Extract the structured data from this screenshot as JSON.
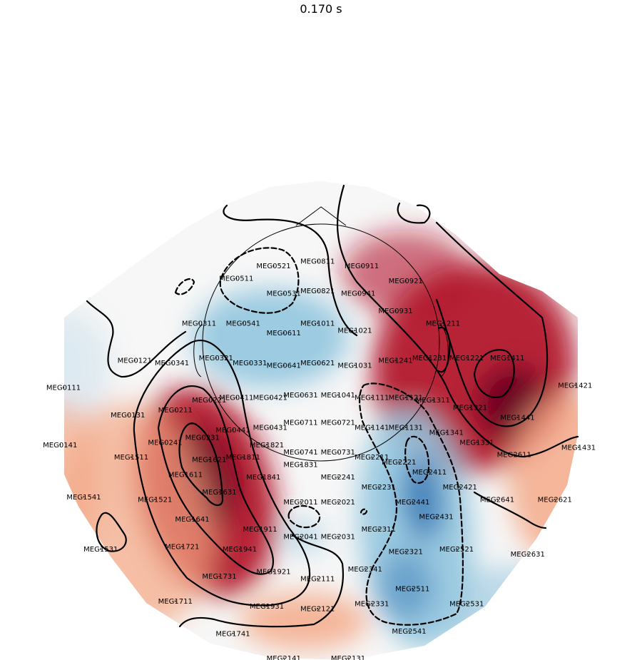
{
  "chart_data": {
    "type": "heatmap",
    "title": "0.170 s",
    "colormap": {
      "name": "RdBu_r",
      "negative_strong": "#2166ac",
      "negative": "#92c5de",
      "neutral": "#f7f7f7",
      "positive": "#f4a582",
      "positive_strong": "#b2182b",
      "positive_max": "#67001f"
    },
    "value_range": [
      -1,
      1
    ],
    "sensors": [
      {
        "name": "MEG0111",
        "x": -0.76,
        "y": 0.12
      },
      {
        "name": "MEG0121",
        "x": -0.55,
        "y": 0.23
      },
      {
        "name": "MEG0131",
        "x": -0.57,
        "y": 0.01
      },
      {
        "name": "MEG0141",
        "x": -0.77,
        "y": -0.11
      },
      {
        "name": "MEG0211",
        "x": -0.43,
        "y": 0.03
      },
      {
        "name": "MEG0221",
        "x": -0.33,
        "y": 0.07
      },
      {
        "name": "MEG0231",
        "x": -0.35,
        "y": -0.08
      },
      {
        "name": "MEG0241",
        "x": -0.46,
        "y": -0.1
      },
      {
        "name": "MEG0311",
        "x": -0.36,
        "y": 0.38
      },
      {
        "name": "MEG0321",
        "x": -0.31,
        "y": 0.24
      },
      {
        "name": "MEG0331",
        "x": -0.21,
        "y": 0.22
      },
      {
        "name": "MEG0341",
        "x": -0.44,
        "y": 0.22
      },
      {
        "name": "MEG0411",
        "x": -0.25,
        "y": 0.08
      },
      {
        "name": "MEG0421",
        "x": -0.15,
        "y": 0.08
      },
      {
        "name": "MEG0431",
        "x": -0.15,
        "y": -0.04
      },
      {
        "name": "MEG0441",
        "x": -0.26,
        "y": -0.05
      },
      {
        "name": "MEG0511",
        "x": -0.25,
        "y": 0.56
      },
      {
        "name": "MEG0521",
        "x": -0.14,
        "y": 0.61
      },
      {
        "name": "MEG0531",
        "x": -0.11,
        "y": 0.5
      },
      {
        "name": "MEG0541",
        "x": -0.23,
        "y": 0.38
      },
      {
        "name": "MEG0611",
        "x": -0.11,
        "y": 0.34
      },
      {
        "name": "MEG0621",
        "x": -0.01,
        "y": 0.22
      },
      {
        "name": "MEG0631",
        "x": -0.06,
        "y": 0.09
      },
      {
        "name": "MEG0641",
        "x": -0.11,
        "y": 0.21
      },
      {
        "name": "MEG0711",
        "x": -0.06,
        "y": -0.02
      },
      {
        "name": "MEG0721",
        "x": 0.05,
        "y": -0.02
      },
      {
        "name": "MEG0731",
        "x": 0.05,
        "y": -0.14
      },
      {
        "name": "MEG0741",
        "x": -0.06,
        "y": -0.14
      },
      {
        "name": "MEG0811",
        "x": -0.01,
        "y": 0.63
      },
      {
        "name": "MEG0821",
        "x": -0.01,
        "y": 0.51
      },
      {
        "name": "MEG0911",
        "x": 0.12,
        "y": 0.61
      },
      {
        "name": "MEG0921",
        "x": 0.25,
        "y": 0.55
      },
      {
        "name": "MEG0931",
        "x": 0.22,
        "y": 0.43
      },
      {
        "name": "MEG0941",
        "x": 0.11,
        "y": 0.5
      },
      {
        "name": "MEG1011",
        "x": -0.01,
        "y": 0.38
      },
      {
        "name": "MEG1021",
        "x": 0.1,
        "y": 0.35
      },
      {
        "name": "MEG1031",
        "x": 0.1,
        "y": 0.21
      },
      {
        "name": "MEG1041",
        "x": 0.05,
        "y": 0.09
      },
      {
        "name": "MEG1111",
        "x": 0.15,
        "y": 0.08
      },
      {
        "name": "MEG1121",
        "x": 0.25,
        "y": 0.08
      },
      {
        "name": "MEG1131",
        "x": 0.25,
        "y": -0.04
      },
      {
        "name": "MEG1141",
        "x": 0.15,
        "y": -0.04
      },
      {
        "name": "MEG1211",
        "x": 0.36,
        "y": 0.38
      },
      {
        "name": "MEG1221",
        "x": 0.43,
        "y": 0.24
      },
      {
        "name": "MEG1231",
        "x": 0.32,
        "y": 0.24
      },
      {
        "name": "MEG1241",
        "x": 0.22,
        "y": 0.23
      },
      {
        "name": "MEG1311",
        "x": 0.33,
        "y": 0.07
      },
      {
        "name": "MEG1321",
        "x": 0.44,
        "y": 0.04
      },
      {
        "name": "MEG1331",
        "x": 0.46,
        "y": -0.1
      },
      {
        "name": "MEG1341",
        "x": 0.37,
        "y": -0.06
      },
      {
        "name": "MEG1411",
        "x": 0.55,
        "y": 0.24
      },
      {
        "name": "MEG1421",
        "x": 0.75,
        "y": 0.13
      },
      {
        "name": "MEG1431",
        "x": 0.76,
        "y": -0.12
      },
      {
        "name": "MEG1441",
        "x": 0.58,
        "y": 0.0
      },
      {
        "name": "MEG1511",
        "x": -0.56,
        "y": -0.16
      },
      {
        "name": "MEG1521",
        "x": -0.49,
        "y": -0.33
      },
      {
        "name": "MEG1531",
        "x": -0.65,
        "y": -0.53
      },
      {
        "name": "MEG1541",
        "x": -0.7,
        "y": -0.32
      },
      {
        "name": "MEG1611",
        "x": -0.4,
        "y": -0.23
      },
      {
        "name": "MEG1621",
        "x": -0.33,
        "y": -0.17
      },
      {
        "name": "MEG1631",
        "x": -0.3,
        "y": -0.3
      },
      {
        "name": "MEG1641",
        "x": -0.38,
        "y": -0.41
      },
      {
        "name": "MEG1711",
        "x": -0.43,
        "y": -0.74
      },
      {
        "name": "MEG1721",
        "x": -0.41,
        "y": -0.52
      },
      {
        "name": "MEG1731",
        "x": -0.3,
        "y": -0.64
      },
      {
        "name": "MEG1741",
        "x": -0.26,
        "y": -0.87
      },
      {
        "name": "MEG1811",
        "x": -0.23,
        "y": -0.16
      },
      {
        "name": "MEG1821",
        "x": -0.16,
        "y": -0.11
      },
      {
        "name": "MEG1831",
        "x": -0.06,
        "y": -0.19
      },
      {
        "name": "MEG1841",
        "x": -0.17,
        "y": -0.24
      },
      {
        "name": "MEG1911",
        "x": -0.18,
        "y": -0.45
      },
      {
        "name": "MEG1921",
        "x": -0.14,
        "y": -0.62
      },
      {
        "name": "MEG1931",
        "x": -0.16,
        "y": -0.76
      },
      {
        "name": "MEG1941",
        "x": -0.24,
        "y": -0.53
      },
      {
        "name": "MEG2011",
        "x": -0.06,
        "y": -0.34
      },
      {
        "name": "MEG2021",
        "x": 0.05,
        "y": -0.34
      },
      {
        "name": "MEG2031",
        "x": 0.05,
        "y": -0.48
      },
      {
        "name": "MEG2041",
        "x": -0.06,
        "y": -0.48
      },
      {
        "name": "MEG2111",
        "x": -0.01,
        "y": -0.65
      },
      {
        "name": "MEG2121",
        "x": -0.01,
        "y": -0.77
      },
      {
        "name": "MEG2131",
        "x": 0.08,
        "y": -0.97
      },
      {
        "name": "MEG2141",
        "x": -0.11,
        "y": -0.97
      },
      {
        "name": "MEG2211",
        "x": 0.15,
        "y": -0.16
      },
      {
        "name": "MEG2221",
        "x": 0.23,
        "y": -0.18
      },
      {
        "name": "MEG2231",
        "x": 0.17,
        "y": -0.28
      },
      {
        "name": "MEG2241",
        "x": 0.05,
        "y": -0.24
      },
      {
        "name": "MEG2311",
        "x": 0.17,
        "y": -0.45
      },
      {
        "name": "MEG2321",
        "x": 0.25,
        "y": -0.54
      },
      {
        "name": "MEG2331",
        "x": 0.15,
        "y": -0.75
      },
      {
        "name": "MEG2341",
        "x": 0.13,
        "y": -0.61
      },
      {
        "name": "MEG2411",
        "x": 0.32,
        "y": -0.22
      },
      {
        "name": "MEG2421",
        "x": 0.41,
        "y": -0.28
      },
      {
        "name": "MEG2431",
        "x": 0.34,
        "y": -0.4
      },
      {
        "name": "MEG2441",
        "x": 0.27,
        "y": -0.34
      },
      {
        "name": "MEG2511",
        "x": 0.27,
        "y": -0.69
      },
      {
        "name": "MEG2521",
        "x": 0.4,
        "y": -0.53
      },
      {
        "name": "MEG2531",
        "x": 0.43,
        "y": -0.75
      },
      {
        "name": "MEG2541",
        "x": 0.26,
        "y": -0.86
      },
      {
        "name": "MEG2611",
        "x": 0.57,
        "y": -0.15
      },
      {
        "name": "MEG2621",
        "x": 0.69,
        "y": -0.33
      },
      {
        "name": "MEG2631",
        "x": 0.61,
        "y": -0.55
      },
      {
        "name": "MEG2641",
        "x": 0.52,
        "y": -0.33
      }
    ]
  }
}
